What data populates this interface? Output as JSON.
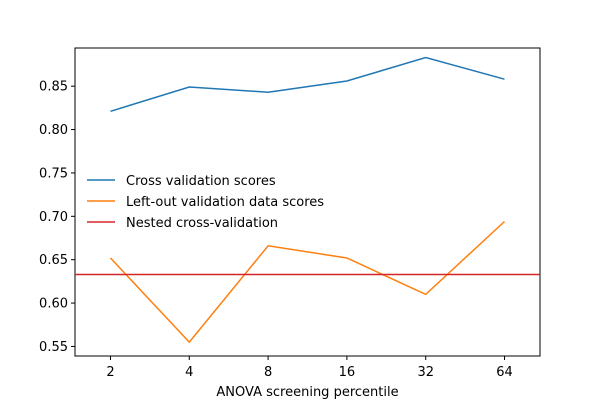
{
  "chart_data": {
    "type": "line",
    "title": "",
    "xlabel": "ANOVA screening percentile",
    "ylabel": "",
    "x_ticks": [
      "2",
      "4",
      "8",
      "16",
      "32",
      "64"
    ],
    "xlim": [
      -0.45,
      5.45
    ],
    "ylim": [
      0.539,
      0.894
    ],
    "y_ticks": [
      "0.55",
      "0.60",
      "0.65",
      "0.70",
      "0.75",
      "0.80",
      "0.85"
    ],
    "y_tick_values": [
      0.55,
      0.6,
      0.65,
      0.7,
      0.75,
      0.8,
      0.85
    ],
    "grid": false,
    "legend_position": "center-left",
    "series": [
      {
        "name": "Cross validation scores",
        "color": "#1f77b4",
        "values": [
          0.821,
          0.849,
          0.843,
          0.856,
          0.883,
          0.858
        ]
      },
      {
        "name": "Left-out validation data scores",
        "color": "#ff7f0e",
        "values": [
          0.652,
          0.555,
          0.666,
          0.652,
          0.61,
          0.694
        ]
      }
    ],
    "hline": {
      "name": "Nested cross-validation",
      "color": "#d62728",
      "value": 0.633
    }
  }
}
